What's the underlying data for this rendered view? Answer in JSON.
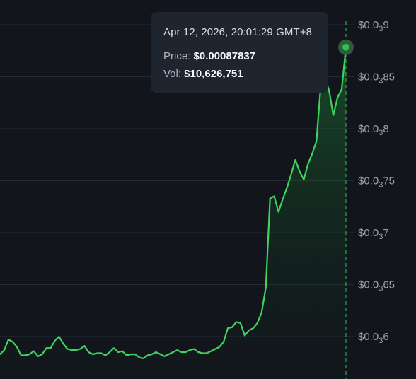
{
  "chart_data": {
    "type": "area",
    "x_start": "Apr 11, 2026, 18:00",
    "x_end": "Apr 12, 2026, 20:01:29",
    "y_ticks": [
      {
        "prefix": "$0.0",
        "sub": "3",
        "suffix": "9",
        "value": 0.0009
      },
      {
        "prefix": "$0.0",
        "sub": "3",
        "suffix": "85",
        "value": 0.00085
      },
      {
        "prefix": "$0.0",
        "sub": "3",
        "suffix": "8",
        "value": 0.0008
      },
      {
        "prefix": "$0.0",
        "sub": "3",
        "suffix": "75",
        "value": 0.00075
      },
      {
        "prefix": "$0.0",
        "sub": "3",
        "suffix": "7",
        "value": 0.0007
      },
      {
        "prefix": "$0.0",
        "sub": "3",
        "suffix": "65",
        "value": 0.00065
      },
      {
        "prefix": "$0.0",
        "sub": "3",
        "suffix": "6",
        "value": 0.0006
      }
    ],
    "ylim": [
      0.000575,
      0.0009155
    ],
    "grid": true,
    "series": [
      {
        "values": [
          0.000583,
          0.000587,
          0.000597,
          0.000595,
          0.00059,
          0.000582,
          0.000582,
          0.000583,
          0.000586,
          0.000581,
          0.000583,
          0.000589,
          0.000589,
          0.000596,
          0.0006,
          0.000593,
          0.000588,
          0.000587,
          0.000587,
          0.000588,
          0.000591,
          0.000585,
          0.000583,
          0.000584,
          0.000584,
          0.000582,
          0.000585,
          0.000589,
          0.000585,
          0.000586,
          0.000582,
          0.000583,
          0.000583,
          0.00058,
          0.000579,
          0.000582,
          0.000583,
          0.000585,
          0.000583,
          0.000581,
          0.000583,
          0.000585,
          0.000587,
          0.000585,
          0.000585,
          0.000587,
          0.000588,
          0.000585,
          0.000584,
          0.000584,
          0.000586,
          0.000588,
          0.00059,
          0.000595,
          0.000608,
          0.000609,
          0.000614,
          0.000613,
          0.000601,
          0.000606,
          0.000608,
          0.000613,
          0.000623,
          0.000647,
          0.000733,
          0.000735,
          0.00072,
          0.000732,
          0.000743,
          0.000756,
          0.00077,
          0.000759,
          0.000751,
          0.000766,
          0.000776,
          0.000788,
          0.00084,
          0.000849,
          0.000837,
          0.000813,
          0.00083,
          0.000838,
          0.00087837
        ]
      }
    ]
  },
  "tooltip": {
    "date": "Apr 12, 2026, 20:01:29 GMT+8",
    "price_label": "Price:",
    "price_value": "$0.00087837",
    "vol_label": "Vol:",
    "vol_value": "$10,626,751"
  },
  "colors": {
    "line": "#3ed35e",
    "marker": "#2fbf4f",
    "marker_halo": "#2f5a3c",
    "crosshair": "#2fbf4f",
    "gridline": "#262b33",
    "background": "#12161c"
  }
}
